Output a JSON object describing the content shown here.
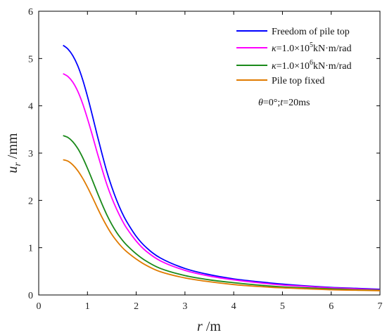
{
  "chart_data": {
    "type": "line",
    "xlabel": {
      "main": "r",
      "unit": " /m"
    },
    "ylabel": {
      "main": "u",
      "sub": "r",
      "unit": " /mm"
    },
    "xlim": [
      0,
      7
    ],
    "ylim": [
      0,
      6
    ],
    "xticks": [
      0,
      1,
      2,
      3,
      4,
      5,
      6,
      7
    ],
    "yticks": [
      0,
      1,
      2,
      3,
      4,
      5,
      6
    ],
    "grid": false,
    "legend_position": "top-right",
    "annotation": {
      "theta": "θ",
      "mid": "=0°;",
      "t": "t",
      "end": "=20ms"
    },
    "x": [
      0.5,
      0.6,
      0.7,
      0.8,
      0.9,
      1.0,
      1.1,
      1.2,
      1.3,
      1.4,
      1.5,
      1.6,
      1.7,
      1.8,
      2.0,
      2.2,
      2.5,
      3.0,
      3.5,
      4.0,
      4.5,
      5.0,
      5.5,
      6.0,
      6.5,
      7.0
    ],
    "series": [
      {
        "name": "Freedom of pile top",
        "color": "#0000ff",
        "values": [
          5.28,
          5.2,
          5.06,
          4.85,
          4.56,
          4.2,
          3.8,
          3.38,
          2.98,
          2.6,
          2.28,
          2.0,
          1.76,
          1.56,
          1.24,
          1.01,
          0.78,
          0.56,
          0.43,
          0.34,
          0.28,
          0.23,
          0.19,
          0.16,
          0.14,
          0.12
        ]
      },
      {
        "name_parts": {
          "kappa": "κ",
          "pre": "=1.0×10",
          "sup": "5",
          "post": "kN·m/rad"
        },
        "color": "#ff00ff",
        "values": [
          4.68,
          4.62,
          4.5,
          4.31,
          4.05,
          3.73,
          3.38,
          3.01,
          2.66,
          2.33,
          2.05,
          1.81,
          1.6,
          1.42,
          1.14,
          0.93,
          0.72,
          0.52,
          0.4,
          0.32,
          0.26,
          0.21,
          0.18,
          0.15,
          0.13,
          0.11
        ]
      },
      {
        "name_parts": {
          "kappa": "κ",
          "pre": "=1.0×10",
          "sup": "6",
          "post": "kN·m/rad"
        },
        "color": "#1a8a1a",
        "values": [
          3.37,
          3.33,
          3.24,
          3.1,
          2.91,
          2.68,
          2.43,
          2.17,
          1.92,
          1.69,
          1.49,
          1.32,
          1.18,
          1.06,
          0.87,
          0.72,
          0.56,
          0.41,
          0.32,
          0.26,
          0.21,
          0.17,
          0.15,
          0.13,
          0.11,
          0.1
        ]
      },
      {
        "name": "Pile top fixed",
        "color": "#e07b00",
        "values": [
          2.86,
          2.83,
          2.75,
          2.63,
          2.47,
          2.28,
          2.07,
          1.85,
          1.64,
          1.45,
          1.28,
          1.14,
          1.02,
          0.92,
          0.76,
          0.63,
          0.49,
          0.36,
          0.28,
          0.22,
          0.18,
          0.15,
          0.13,
          0.11,
          0.1,
          0.09
        ]
      }
    ]
  }
}
